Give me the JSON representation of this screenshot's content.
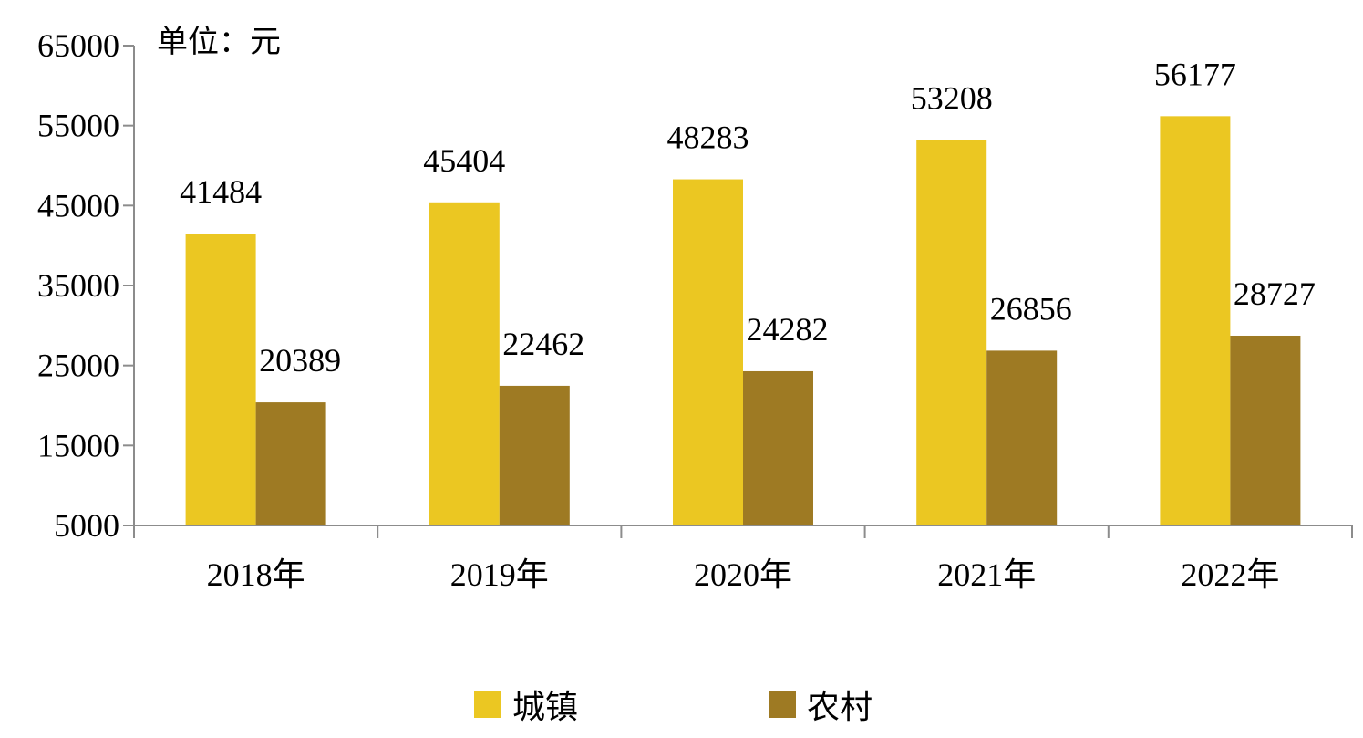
{
  "chart_data": {
    "type": "bar",
    "unit_label": "单位：元",
    "categories": [
      "2018年",
      "2019年",
      "2020年",
      "2021年",
      "2022年"
    ],
    "series": [
      {
        "name": "城镇",
        "color": "#EBC722",
        "values": [
          41484,
          45404,
          48283,
          53208,
          56177
        ]
      },
      {
        "name": "农村",
        "color": "#9E7A23",
        "values": [
          20389,
          22462,
          24282,
          26856,
          28727
        ]
      }
    ],
    "y_ticks": [
      "5000",
      "15000",
      "25000",
      "35000",
      "45000",
      "55000",
      "65000"
    ],
    "ylim": [
      5000,
      65000
    ],
    "grid": false,
    "legend_position": "bottom"
  }
}
